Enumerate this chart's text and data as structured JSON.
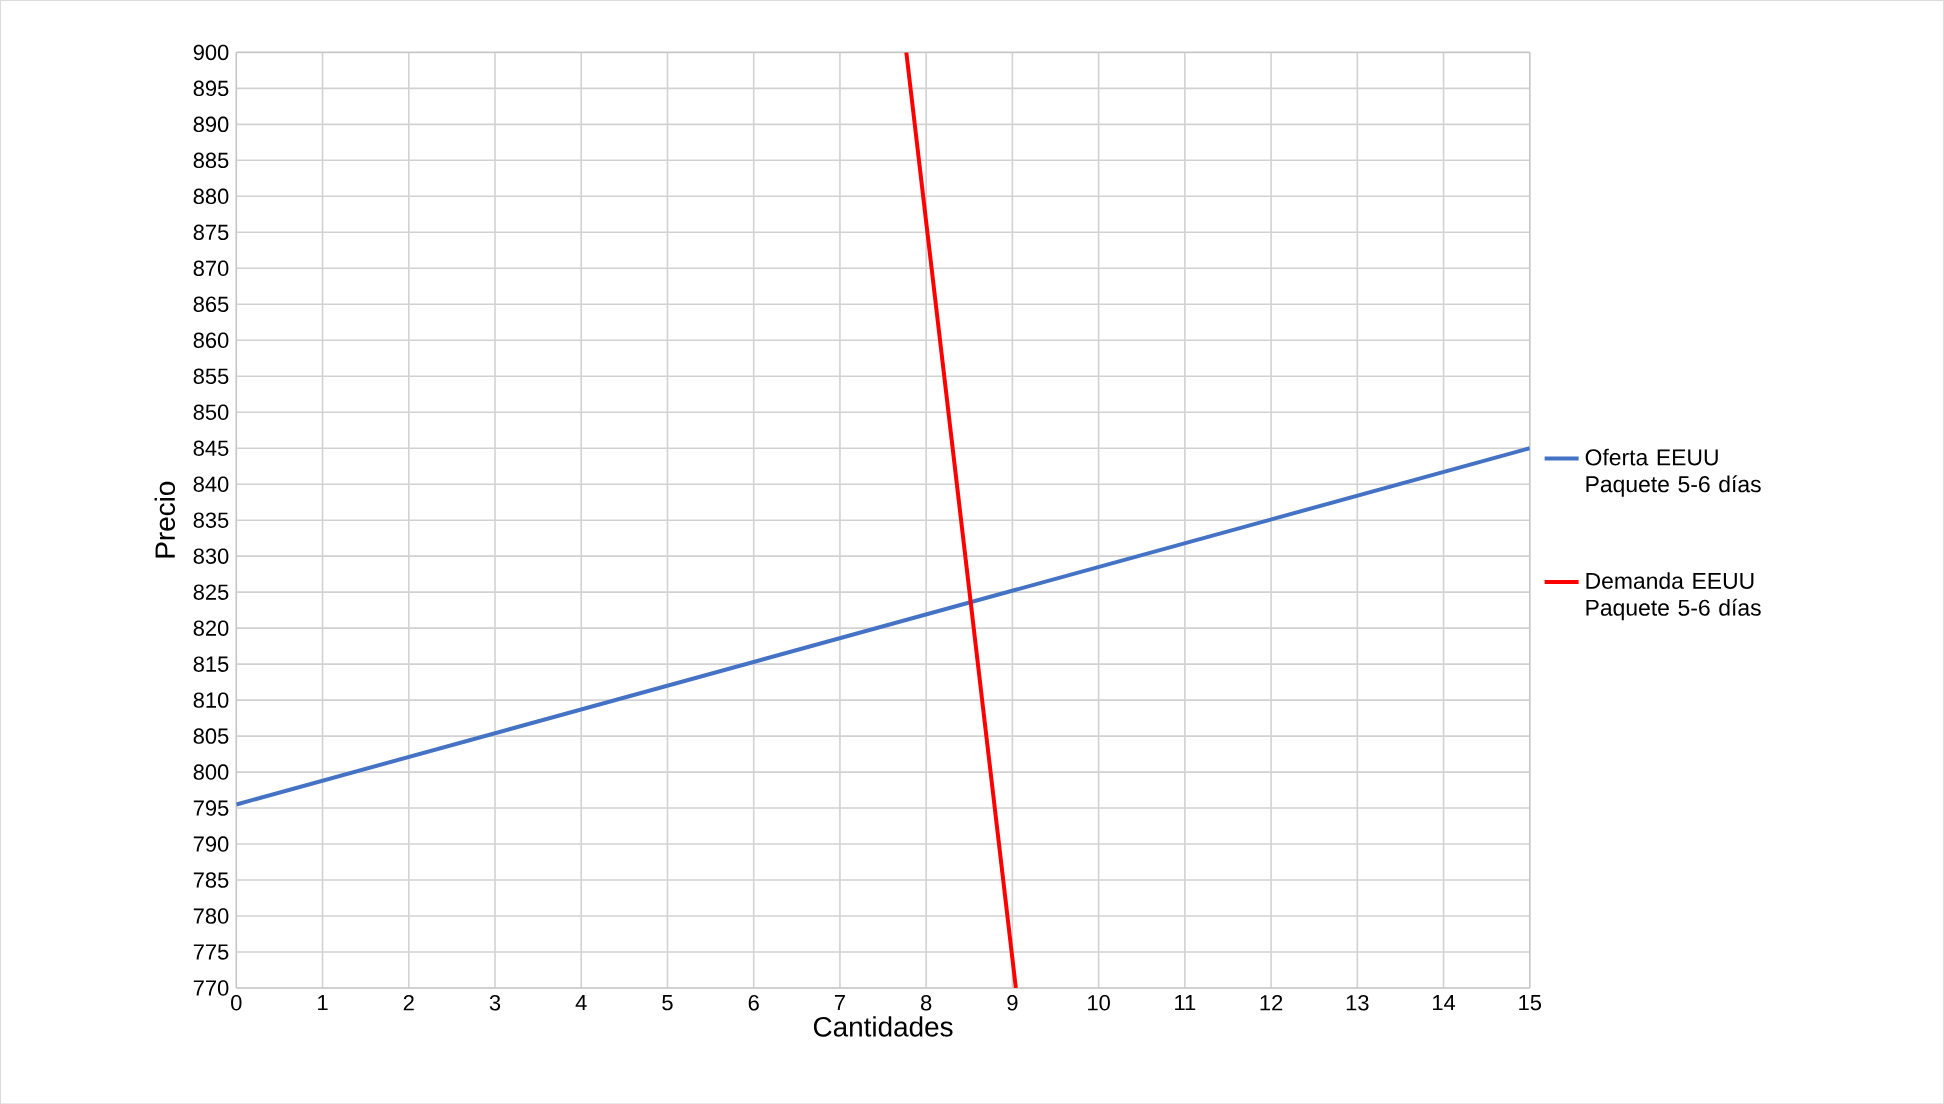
{
  "chart_data": {
    "type": "line",
    "xlabel": "Cantidades",
    "ylabel": "Precio",
    "xlim": [
      0,
      15
    ],
    "ylim": [
      770,
      900
    ],
    "xticks": [
      0,
      1,
      2,
      3,
      4,
      5,
      6,
      7,
      8,
      9,
      10,
      11,
      12,
      13,
      14,
      15
    ],
    "yticks": [
      770,
      775,
      780,
      785,
      790,
      795,
      800,
      805,
      810,
      815,
      820,
      825,
      830,
      835,
      840,
      845,
      850,
      855,
      860,
      865,
      870,
      875,
      880,
      885,
      890,
      895,
      900
    ],
    "grid": true,
    "legend": "right",
    "series": [
      {
        "name": "Oferta EEUU Paquete 5-6 días",
        "color": "#4472c4",
        "x": [
          0,
          15
        ],
        "values": [
          795.5,
          845
        ]
      },
      {
        "name": "Demanda EEUU Paquete 5-6 días",
        "color": "#ff0000",
        "x": [
          7.77,
          9.04
        ],
        "values": [
          900,
          770
        ]
      }
    ]
  }
}
